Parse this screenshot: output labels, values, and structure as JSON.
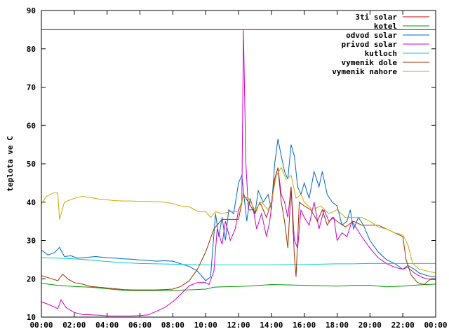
{
  "chart_data": {
    "type": "line",
    "ylabel": "teplota ve C",
    "xlabel": "",
    "ylim": [
      10,
      90
    ],
    "yticks": [
      10,
      20,
      30,
      40,
      50,
      60,
      70,
      80,
      90
    ],
    "xlim": [
      0,
      24
    ],
    "xticks": [
      "00:00",
      "02:00",
      "04:00",
      "06:00",
      "08:00",
      "10:00",
      "12:00",
      "14:00",
      "16:00",
      "18:00",
      "20:00",
      "22:00",
      "00:00"
    ],
    "legend_position": "top-right",
    "grid": false,
    "series": [
      {
        "name": "3ti solar",
        "color": "#cc0000",
        "points": [
          [
            0,
            85
          ],
          [
            24,
            85
          ]
        ]
      },
      {
        "name": "kotel",
        "color": "#009900",
        "points": [
          [
            0,
            18.8
          ],
          [
            1,
            18.3
          ],
          [
            2,
            18
          ],
          [
            3,
            17.8
          ],
          [
            4,
            17.4
          ],
          [
            5,
            17
          ],
          [
            6,
            16.9
          ],
          [
            7,
            16.9
          ],
          [
            8,
            17
          ],
          [
            9,
            17.1
          ],
          [
            10,
            17.3
          ],
          [
            10.5,
            17.8
          ],
          [
            11,
            17.9
          ],
          [
            12,
            18
          ],
          [
            13,
            18.2
          ],
          [
            14,
            18.5
          ],
          [
            15,
            18.4
          ],
          [
            16,
            18.3
          ],
          [
            17,
            18.2
          ],
          [
            18,
            18.1
          ],
          [
            19,
            18.3
          ],
          [
            20,
            18.3
          ],
          [
            21,
            17.9
          ],
          [
            22,
            18.1
          ],
          [
            23,
            18.4
          ],
          [
            24,
            18.6
          ]
        ]
      },
      {
        "name": "odvod solar",
        "color": "#0066cc",
        "points": [
          [
            0,
            27.5
          ],
          [
            0.4,
            26.2
          ],
          [
            0.8,
            26.8
          ],
          [
            1.1,
            28.2
          ],
          [
            1.4,
            25.8
          ],
          [
            1.8,
            26
          ],
          [
            2.2,
            25.4
          ],
          [
            2.8,
            25.6
          ],
          [
            3.3,
            25.8
          ],
          [
            4,
            25.5
          ],
          [
            4.5,
            25.4
          ],
          [
            5,
            25.2
          ],
          [
            5.5,
            25.1
          ],
          [
            6,
            24.9
          ],
          [
            6.5,
            24.8
          ],
          [
            7,
            24.6
          ],
          [
            7.5,
            24.7
          ],
          [
            8,
            24.6
          ],
          [
            8.5,
            23.9
          ],
          [
            9,
            23.2
          ],
          [
            9.5,
            22
          ],
          [
            10,
            19.5
          ],
          [
            10.3,
            20.5
          ],
          [
            10.6,
            37
          ],
          [
            10.8,
            31
          ],
          [
            11,
            36
          ],
          [
            11.2,
            30
          ],
          [
            11.4,
            38
          ],
          [
            11.7,
            37
          ],
          [
            12,
            45
          ],
          [
            12.2,
            47
          ],
          [
            12.5,
            35
          ],
          [
            12.7,
            41
          ],
          [
            13,
            37
          ],
          [
            13.2,
            43
          ],
          [
            13.5,
            40
          ],
          [
            13.8,
            42
          ],
          [
            14,
            38
          ],
          [
            14.2,
            50
          ],
          [
            14.4,
            56.5
          ],
          [
            14.6,
            52
          ],
          [
            14.8,
            48
          ],
          [
            15,
            46
          ],
          [
            15.2,
            55
          ],
          [
            15.4,
            52
          ],
          [
            15.6,
            44
          ],
          [
            15.8,
            42
          ],
          [
            16,
            45
          ],
          [
            16.3,
            41
          ],
          [
            16.6,
            48
          ],
          [
            16.9,
            44
          ],
          [
            17.1,
            48
          ],
          [
            17.4,
            42
          ],
          [
            17.7,
            40
          ],
          [
            18,
            39
          ],
          [
            18.3,
            34
          ],
          [
            18.6,
            35
          ],
          [
            18.8,
            38
          ],
          [
            19,
            33
          ],
          [
            19.3,
            36
          ],
          [
            19.6,
            34
          ],
          [
            20,
            30
          ],
          [
            20.5,
            27
          ],
          [
            21,
            25
          ],
          [
            21.5,
            24
          ],
          [
            22,
            22.5
          ],
          [
            22.3,
            23.5
          ],
          [
            22.7,
            22.5
          ],
          [
            23,
            21.5
          ],
          [
            23.5,
            20.8
          ],
          [
            24,
            20.5
          ]
        ]
      },
      {
        "name": "privod solar",
        "color": "#cc00cc",
        "points": [
          [
            0,
            14
          ],
          [
            0.5,
            13.2
          ],
          [
            1,
            12.2
          ],
          [
            1.2,
            14.5
          ],
          [
            1.5,
            12.5
          ],
          [
            2,
            11.2
          ],
          [
            2.5,
            10.7
          ],
          [
            3,
            10.6
          ],
          [
            3.5,
            10.5
          ],
          [
            4,
            10.3
          ],
          [
            4.5,
            10.3
          ],
          [
            5,
            10.3
          ],
          [
            5.5,
            10.3
          ],
          [
            6,
            10.4
          ],
          [
            6.5,
            10.6
          ],
          [
            7,
            11.5
          ],
          [
            7.5,
            12.5
          ],
          [
            8,
            14
          ],
          [
            8.5,
            16
          ],
          [
            9,
            18.2
          ],
          [
            9.5,
            19
          ],
          [
            10,
            19
          ],
          [
            10.2,
            18.5
          ],
          [
            10.5,
            22
          ],
          [
            10.7,
            33
          ],
          [
            11,
            29
          ],
          [
            11.2,
            35
          ],
          [
            11.5,
            30
          ],
          [
            11.8,
            33
          ],
          [
            12,
            38
          ],
          [
            12.2,
            40
          ],
          [
            12.3,
            85
          ],
          [
            12.45,
            50
          ],
          [
            12.6,
            38
          ],
          [
            12.9,
            38
          ],
          [
            13.1,
            33
          ],
          [
            13.4,
            37
          ],
          [
            13.7,
            31
          ],
          [
            13.9,
            35
          ],
          [
            14.2,
            46
          ],
          [
            14.4,
            49
          ],
          [
            14.6,
            42
          ],
          [
            14.8,
            40
          ],
          [
            15,
            36
          ],
          [
            15.2,
            44
          ],
          [
            15.4,
            30
          ],
          [
            15.6,
            28
          ],
          [
            15.8,
            38
          ],
          [
            16,
            36
          ],
          [
            16.3,
            34
          ],
          [
            16.6,
            40
          ],
          [
            16.9,
            33
          ],
          [
            17.2,
            38
          ],
          [
            17.5,
            35
          ],
          [
            17.8,
            36
          ],
          [
            18,
            30
          ],
          [
            18.3,
            32
          ],
          [
            18.6,
            31
          ],
          [
            18.9,
            35
          ],
          [
            19.2,
            33
          ],
          [
            19.5,
            31
          ],
          [
            20,
            28
          ],
          [
            20.5,
            25.5
          ],
          [
            21,
            24
          ],
          [
            21.5,
            23
          ],
          [
            22,
            22.5
          ],
          [
            22.3,
            23
          ],
          [
            22.7,
            21.5
          ],
          [
            23.2,
            20.3
          ],
          [
            23.7,
            19.8
          ],
          [
            24,
            19.8
          ]
        ]
      },
      {
        "name": "kutloch",
        "color": "#00cccc",
        "points": [
          [
            0,
            25.5
          ],
          [
            1,
            25.4
          ],
          [
            2,
            25.2
          ],
          [
            3,
            24.9
          ],
          [
            4,
            24.5
          ],
          [
            5,
            24.2
          ],
          [
            6,
            24
          ],
          [
            7,
            23.9
          ],
          [
            8,
            23.8
          ],
          [
            9,
            23.7
          ],
          [
            10,
            23.6
          ],
          [
            11,
            23.6
          ],
          [
            12,
            23.6
          ],
          [
            13,
            23.6
          ],
          [
            14,
            23.6
          ],
          [
            15,
            23.7
          ],
          [
            16,
            23.7
          ],
          [
            17,
            23.8
          ],
          [
            18,
            23.9
          ],
          [
            19,
            23.9
          ],
          [
            20,
            24
          ],
          [
            21,
            24
          ],
          [
            22,
            24
          ],
          [
            23,
            24
          ],
          [
            24,
            24
          ]
        ]
      },
      {
        "name": "vymenik dole",
        "color": "#993300",
        "points": [
          [
            0,
            20.8
          ],
          [
            0.5,
            20.2
          ],
          [
            1,
            19.5
          ],
          [
            1.3,
            21.2
          ],
          [
            1.6,
            20
          ],
          [
            2,
            19
          ],
          [
            2.5,
            18.6
          ],
          [
            3,
            18
          ],
          [
            3.5,
            17.8
          ],
          [
            4,
            17.6
          ],
          [
            4.5,
            17.4
          ],
          [
            5,
            17.2
          ],
          [
            5.5,
            17.1
          ],
          [
            6,
            17.1
          ],
          [
            6.5,
            17.1
          ],
          [
            7,
            17.1
          ],
          [
            7.5,
            17.2
          ],
          [
            8,
            17.3
          ],
          [
            8.5,
            18
          ],
          [
            9,
            19.5
          ],
          [
            9.5,
            22.5
          ],
          [
            10,
            27
          ],
          [
            10.5,
            33
          ],
          [
            11,
            35.5
          ],
          [
            11.5,
            35.5
          ],
          [
            12,
            35.5
          ],
          [
            12.3,
            42
          ],
          [
            12.6,
            40
          ],
          [
            13,
            37
          ],
          [
            13.3,
            40
          ],
          [
            13.7,
            36
          ],
          [
            14,
            40
          ],
          [
            14.2,
            46
          ],
          [
            14.4,
            49
          ],
          [
            14.6,
            40
          ],
          [
            14.8,
            35
          ],
          [
            15,
            28
          ],
          [
            15.2,
            44
          ],
          [
            15.4,
            26
          ],
          [
            15.5,
            20.5
          ],
          [
            15.7,
            40
          ],
          [
            16,
            39
          ],
          [
            16.4,
            38
          ],
          [
            16.8,
            35
          ],
          [
            17.1,
            38
          ],
          [
            17.4,
            34
          ],
          [
            17.7,
            36
          ],
          [
            18,
            35
          ],
          [
            18.5,
            33.5
          ],
          [
            19,
            35
          ],
          [
            19.5,
            34
          ],
          [
            20,
            34
          ],
          [
            20.5,
            34
          ],
          [
            21,
            33
          ],
          [
            21.5,
            32
          ],
          [
            22,
            31
          ],
          [
            22.2,
            25
          ],
          [
            22.5,
            21
          ],
          [
            22.9,
            19
          ],
          [
            23.3,
            18.5
          ],
          [
            23.7,
            20
          ],
          [
            24,
            20
          ]
        ]
      },
      {
        "name": "vymenik nahore",
        "color": "#ccaa00",
        "points": [
          [
            0,
            39.5
          ],
          [
            0.3,
            41.5
          ],
          [
            0.8,
            42.5
          ],
          [
            1,
            42.3
          ],
          [
            1.1,
            35.5
          ],
          [
            1.4,
            40
          ],
          [
            2,
            41
          ],
          [
            2.5,
            41.5
          ],
          [
            3,
            41.2
          ],
          [
            3.5,
            40.8
          ],
          [
            4,
            40.6
          ],
          [
            4.5,
            40.4
          ],
          [
            5,
            40.3
          ],
          [
            5.5,
            40.3
          ],
          [
            6,
            40.2
          ],
          [
            6.5,
            40.2
          ],
          [
            7,
            40.1
          ],
          [
            7.5,
            40
          ],
          [
            8,
            39.6
          ],
          [
            8.5,
            39
          ],
          [
            9,
            38.8
          ],
          [
            9.5,
            37.6
          ],
          [
            10,
            37.5
          ],
          [
            10.3,
            36
          ],
          [
            10.6,
            37.5
          ],
          [
            11,
            37
          ],
          [
            11.5,
            37.5
          ],
          [
            12,
            37.5
          ],
          [
            12.3,
            41.5
          ],
          [
            12.6,
            41
          ],
          [
            13,
            38
          ],
          [
            13.4,
            40
          ],
          [
            13.8,
            38
          ],
          [
            14,
            40
          ],
          [
            14.3,
            47
          ],
          [
            14.6,
            49
          ],
          [
            14.9,
            46
          ],
          [
            15.2,
            47
          ],
          [
            15.5,
            41
          ],
          [
            15.8,
            42
          ],
          [
            16,
            40
          ],
          [
            16.5,
            38
          ],
          [
            17,
            39
          ],
          [
            17.5,
            37
          ],
          [
            18,
            38
          ],
          [
            18.5,
            36
          ],
          [
            19,
            36
          ],
          [
            19.5,
            36
          ],
          [
            20,
            35
          ],
          [
            20.5,
            33.5
          ],
          [
            21,
            33
          ],
          [
            21.5,
            32
          ],
          [
            22,
            31.5
          ],
          [
            22.3,
            29
          ],
          [
            22.6,
            24
          ],
          [
            23,
            22.5
          ],
          [
            23.5,
            22
          ],
          [
            24,
            21.5
          ]
        ]
      }
    ]
  }
}
